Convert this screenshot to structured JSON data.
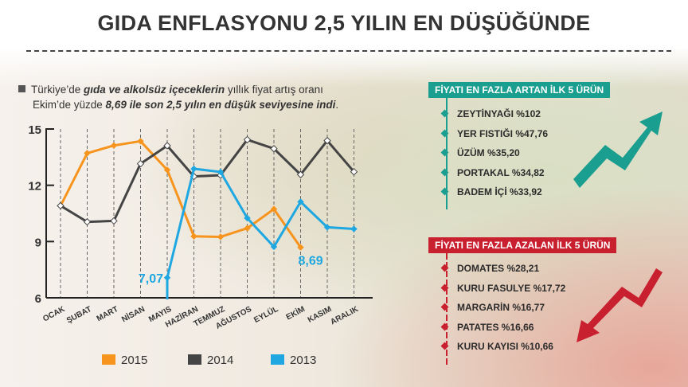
{
  "title": "GIDA ENFLASYONU 2,5 YILIN EN DÜŞÜĞÜNDE",
  "intro": {
    "line1_a": "Türkiye’de ",
    "line1_b": "gıda ve alkolsüz içeceklerin",
    "line1_c": " yıllık fiyat artış oranı",
    "line2_a": "Ekim’de yüzde ",
    "line2_b": "8,69 ile son 2,5 yılın en düşük seviyesine indi",
    "line2_c": "."
  },
  "chart_data": {
    "type": "line",
    "categories": [
      "OCAK",
      "ŞUBAT",
      "MART",
      "NİSAN",
      "MAYIS",
      "HAZİRAN",
      "TEMMUZ",
      "AĞUSTOS",
      "EYLÜL",
      "EKİM",
      "KASIM",
      "ARALIK"
    ],
    "yticks": [
      6,
      9,
      12,
      15
    ],
    "ylim": [
      6,
      15
    ],
    "grid": "vertical dashed",
    "legend": "bottom",
    "series": [
      {
        "name": "2015",
        "color": "#f7941d",
        "values": [
          10.9,
          13.71,
          14.12,
          14.35,
          12.82,
          9.28,
          9.25,
          9.71,
          10.73,
          8.69,
          null,
          null
        ]
      },
      {
        "name": "2014",
        "color": "#444444",
        "values": [
          10.91,
          10.05,
          10.1,
          13.15,
          14.11,
          12.47,
          12.54,
          14.43,
          13.95,
          12.57,
          14.38,
          12.72
        ]
      },
      {
        "name": "2013",
        "color": "#1ea7e1",
        "values": [
          null,
          null,
          null,
          null,
          7.07,
          12.88,
          12.71,
          10.25,
          8.72,
          11.12,
          9.76,
          9.67
        ]
      }
    ],
    "annotations": [
      {
        "text": "7,07",
        "series": "2013",
        "category": "MAYIS"
      },
      {
        "text": "8,69",
        "series": "2015",
        "category": "EKİM"
      }
    ]
  },
  "rising": {
    "header": "FİYATI EN FAZLA ARTAN İLK 5 ÜRÜN",
    "color": "#1a9e8f",
    "items": [
      "ZEYTİNYAĞI %102",
      "YER FISTIĞI %47,76",
      "ÜZÜM %35,20",
      "PORTAKAL %34,82",
      "BADEM İÇİ %33,92"
    ]
  },
  "falling": {
    "header": "FİYATI EN FAZLA AZALAN İLK 5 ÜRÜN",
    "color": "#c8202f",
    "items": [
      "DOMATES %28,21",
      "KURU FASULYE %17,72",
      "MARGARİN %16,77",
      "PATATES %16,66",
      "KURU KAYISI %10,66"
    ]
  }
}
